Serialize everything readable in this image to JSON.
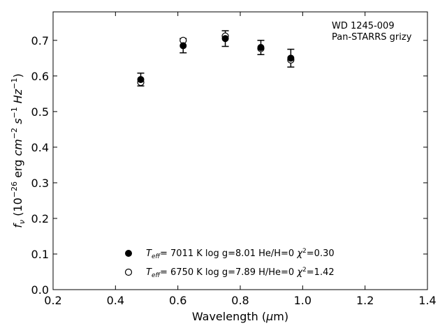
{
  "chart_data": {
    "type": "scatter",
    "title": "",
    "xlabel": "Wavelength (μm)",
    "ylabel": "f_ν (10^−26 erg cm^−2 s^−1 Hz^−1)",
    "xlim": [
      0.2,
      1.4
    ],
    "ylim": [
      0.0,
      0.78
    ],
    "xticks": [
      "0.2",
      "0.4",
      "0.6",
      "0.8",
      "1.0",
      "1.2",
      "1.4"
    ],
    "yticks": [
      "0.0",
      "0.1",
      "0.2",
      "0.3",
      "0.4",
      "0.5",
      "0.6",
      "0.7"
    ],
    "annotation": [
      "WD 1245-009",
      "Pan-STARRS grizy"
    ],
    "observed": {
      "x": [
        0.481,
        0.617,
        0.752,
        0.866,
        0.962
      ],
      "y": [
        0.59,
        0.685,
        0.705,
        0.68,
        0.65
      ],
      "yerr": [
        0.018,
        0.02,
        0.022,
        0.02,
        0.025
      ]
    },
    "series": [
      {
        "marker": "filled-circle",
        "label": {
          "teff": "7011 K",
          "logg": "log g=8.01",
          "comp": "He/H=0",
          "chi2": "=0.30"
        },
        "x": [
          0.481,
          0.617,
          0.752,
          0.866,
          0.962
        ],
        "y": [
          0.59,
          0.685,
          0.705,
          0.68,
          0.65
        ]
      },
      {
        "marker": "open-circle",
        "label": {
          "teff": "6750 K",
          "logg": "log g=7.89",
          "comp": "H/He=0",
          "chi2": "=1.42"
        },
        "x": [
          0.481,
          0.617,
          0.752,
          0.866,
          0.962
        ],
        "y": [
          0.582,
          0.7,
          0.712,
          0.677,
          0.645
        ]
      }
    ],
    "legend_position": "bottom-center",
    "grid": false
  }
}
